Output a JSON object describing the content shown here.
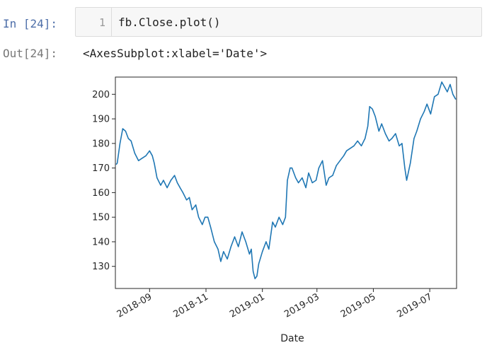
{
  "cell": {
    "in_prompt": "In [24]:",
    "line_number": "1",
    "code": "fb.Close.plot()"
  },
  "output": {
    "out_prompt": "Out[24]:",
    "text": "<AxesSubplot:xlabel='Date'>"
  },
  "chart_data": {
    "type": "line",
    "xlabel": "Date",
    "ylabel": "",
    "x_range": [
      "2018-07-26",
      "2019-07-30"
    ],
    "ylim": [
      121,
      207
    ],
    "grid": false,
    "y_ticks": [
      130,
      140,
      150,
      160,
      170,
      180,
      190,
      200
    ],
    "x_ticks": [
      "2018-09",
      "2018-11",
      "2019-01",
      "2019-03",
      "2019-05",
      "2019-07"
    ],
    "color": "#1f77b4",
    "series": [
      {
        "x": [
          "2018-07-27",
          "2018-07-28",
          "2018-07-31",
          "2018-08-03",
          "2018-08-06",
          "2018-08-09",
          "2018-08-12",
          "2018-08-16",
          "2018-08-20",
          "2018-08-24",
          "2018-08-28",
          "2018-09-01",
          "2018-09-04",
          "2018-09-06",
          "2018-09-09",
          "2018-09-13",
          "2018-09-16",
          "2018-09-20",
          "2018-09-24",
          "2018-09-28",
          "2018-10-01",
          "2018-10-04",
          "2018-10-07",
          "2018-10-11",
          "2018-10-14",
          "2018-10-17",
          "2018-10-21",
          "2018-10-24",
          "2018-10-28",
          "2018-10-31",
          "2018-11-03",
          "2018-11-06",
          "2018-11-10",
          "2018-11-14",
          "2018-11-17",
          "2018-11-20",
          "2018-11-24",
          "2018-11-28",
          "2018-12-02",
          "2018-12-06",
          "2018-12-10",
          "2018-12-14",
          "2018-12-18",
          "2018-12-20",
          "2018-12-22",
          "2018-12-24",
          "2018-12-26",
          "2018-12-28",
          "2019-01-01",
          "2019-01-05",
          "2019-01-08",
          "2019-01-12",
          "2019-01-15",
          "2019-01-19",
          "2019-01-23",
          "2019-01-26",
          "2019-01-28",
          "2019-01-31",
          "2019-02-02",
          "2019-02-06",
          "2019-02-09",
          "2019-02-13",
          "2019-02-17",
          "2019-02-20",
          "2019-02-24",
          "2019-02-28",
          "2019-03-03",
          "2019-03-07",
          "2019-03-11",
          "2019-03-14",
          "2019-03-18",
          "2019-03-22",
          "2019-03-26",
          "2019-03-30",
          "2019-04-02",
          "2019-04-06",
          "2019-04-10",
          "2019-04-14",
          "2019-04-18",
          "2019-04-22",
          "2019-04-25",
          "2019-04-27",
          "2019-04-30",
          "2019-05-03",
          "2019-05-07",
          "2019-05-10",
          "2019-05-14",
          "2019-05-18",
          "2019-05-21",
          "2019-05-25",
          "2019-05-29",
          "2019-06-01",
          "2019-06-04",
          "2019-06-06",
          "2019-06-10",
          "2019-06-14",
          "2019-06-17",
          "2019-06-21",
          "2019-06-25",
          "2019-06-28",
          "2019-07-02",
          "2019-07-06",
          "2019-07-10",
          "2019-07-14",
          "2019-07-17",
          "2019-07-20",
          "2019-07-23",
          "2019-07-26",
          "2019-07-29"
        ],
        "values": [
          171.5,
          172,
          180,
          186,
          185,
          182,
          181,
          176,
          173,
          174,
          175,
          177,
          175,
          172,
          166,
          163,
          165,
          162,
          165,
          167,
          164,
          162,
          160,
          157,
          158,
          153,
          155,
          150,
          147,
          150,
          150,
          146,
          140,
          137,
          132,
          136,
          133,
          138,
          142,
          138,
          144,
          140,
          135,
          137,
          128,
          125,
          126,
          131,
          136,
          140,
          137,
          148,
          146,
          150,
          147,
          150,
          165,
          170,
          170,
          166,
          164,
          166,
          162,
          168,
          164,
          165,
          170,
          173,
          163,
          166,
          167,
          171,
          173,
          175,
          177,
          178,
          179,
          181,
          179,
          182,
          187,
          195,
          194,
          191,
          185,
          188,
          184,
          181,
          182,
          184,
          179,
          180,
          170,
          165,
          172,
          182,
          185,
          190,
          193,
          196,
          192,
          199,
          200,
          205,
          203,
          201,
          204,
          200,
          198
        ]
      }
    ]
  }
}
